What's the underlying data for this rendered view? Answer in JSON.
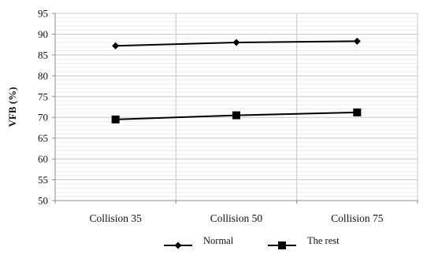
{
  "chart_data": {
    "type": "line",
    "categories": [
      "Collision 35",
      "Collision 50",
      "Collision 75"
    ],
    "series": [
      {
        "name": "Normal",
        "values": [
          87.2,
          88.0,
          88.3
        ],
        "marker": "diamond",
        "color": "#000000"
      },
      {
        "name": "The rest",
        "values": [
          69.5,
          70.5,
          71.2
        ],
        "marker": "square",
        "color": "#000000"
      }
    ],
    "title": "",
    "xlabel": "",
    "ylabel": "VFB (%)",
    "ylim": [
      50,
      95
    ],
    "yticks": [
      50,
      55,
      60,
      65,
      70,
      75,
      80,
      85,
      90,
      95
    ],
    "grid": {
      "horizontal": true,
      "horizontal_style": "faint minor lines",
      "vertical": true
    },
    "legend_position": "bottom",
    "colors": {
      "line": "#000000",
      "axis": "#8c8c8c",
      "grid_major": "#c8c8c8",
      "grid_minor": "#e6e6e6"
    }
  }
}
